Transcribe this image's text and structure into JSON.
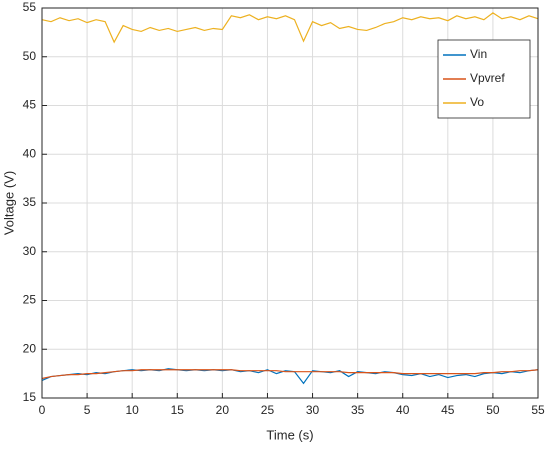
{
  "chart_data": {
    "type": "line",
    "x_label": "Time (s)",
    "y_label": "Voltage (V)",
    "x": [
      0,
      1,
      2,
      3,
      4,
      5,
      6,
      7,
      8,
      9,
      10,
      11,
      12,
      13,
      14,
      15,
      16,
      17,
      18,
      19,
      20,
      21,
      22,
      23,
      24,
      25,
      26,
      27,
      28,
      29,
      30,
      31,
      32,
      33,
      34,
      35,
      36,
      37,
      38,
      39,
      40,
      41,
      42,
      43,
      44,
      45,
      46,
      47,
      48,
      49,
      50,
      51,
      52,
      53,
      54,
      55
    ],
    "series": [
      {
        "name": "Vin",
        "color": "#0072bd",
        "values": [
          16.8,
          17.2,
          17.3,
          17.4,
          17.5,
          17.4,
          17.6,
          17.5,
          17.7,
          17.8,
          17.9,
          17.8,
          17.9,
          17.8,
          18.0,
          17.9,
          17.8,
          17.9,
          17.8,
          17.9,
          17.8,
          17.9,
          17.7,
          17.8,
          17.6,
          17.9,
          17.5,
          17.8,
          17.7,
          16.5,
          17.8,
          17.7,
          17.6,
          17.8,
          17.2,
          17.7,
          17.6,
          17.5,
          17.7,
          17.6,
          17.4,
          17.3,
          17.5,
          17.2,
          17.4,
          17.1,
          17.3,
          17.4,
          17.2,
          17.5,
          17.6,
          17.5,
          17.7,
          17.6,
          17.8,
          17.9
        ]
      },
      {
        "name": "Vpvref",
        "color": "#d95319",
        "values": [
          17.0,
          17.2,
          17.3,
          17.4,
          17.4,
          17.5,
          17.5,
          17.6,
          17.7,
          17.8,
          17.8,
          17.9,
          17.9,
          17.9,
          17.9,
          17.9,
          17.9,
          17.9,
          17.9,
          17.9,
          17.9,
          17.9,
          17.8,
          17.8,
          17.8,
          17.8,
          17.8,
          17.7,
          17.7,
          17.7,
          17.7,
          17.7,
          17.7,
          17.7,
          17.6,
          17.6,
          17.6,
          17.6,
          17.6,
          17.6,
          17.5,
          17.5,
          17.5,
          17.5,
          17.5,
          17.5,
          17.5,
          17.5,
          17.5,
          17.6,
          17.6,
          17.7,
          17.7,
          17.8,
          17.8,
          17.9
        ]
      },
      {
        "name": "Vo",
        "color": "#edb120",
        "values": [
          53.8,
          53.6,
          54.0,
          53.7,
          53.9,
          53.5,
          53.8,
          53.6,
          51.5,
          53.2,
          52.8,
          52.6,
          53.0,
          52.7,
          52.9,
          52.6,
          52.8,
          53.0,
          52.7,
          52.9,
          52.8,
          54.2,
          54.0,
          54.3,
          53.8,
          54.1,
          53.9,
          54.2,
          53.8,
          51.6,
          53.6,
          53.2,
          53.5,
          52.9,
          53.1,
          52.8,
          52.7,
          53.0,
          53.4,
          53.6,
          54.0,
          53.8,
          54.1,
          53.9,
          54.0,
          53.7,
          54.2,
          53.9,
          54.1,
          53.8,
          54.5,
          53.9,
          54.1,
          53.8,
          54.2,
          53.9
        ]
      }
    ],
    "xlim": [
      0,
      55
    ],
    "ylim": [
      15,
      55
    ],
    "xticks": [
      0,
      5,
      10,
      15,
      20,
      25,
      30,
      35,
      40,
      45,
      50,
      55
    ],
    "yticks": [
      15,
      20,
      25,
      30,
      35,
      40,
      45,
      50,
      55
    ],
    "grid": true,
    "legend": "upper right"
  }
}
